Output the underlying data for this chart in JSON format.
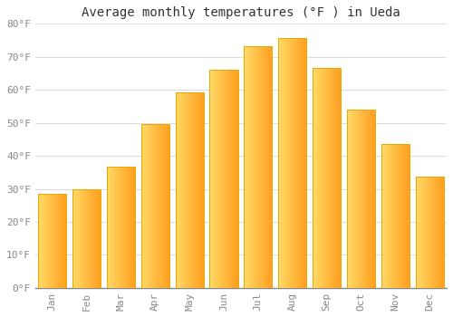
{
  "title": "Average monthly temperatures (°F ) in Ueda",
  "months": [
    "Jan",
    "Feb",
    "Mar",
    "Apr",
    "May",
    "Jun",
    "Jul",
    "Aug",
    "Sep",
    "Oct",
    "Nov",
    "Dec"
  ],
  "values": [
    28.4,
    29.8,
    36.7,
    49.5,
    59.2,
    66.2,
    73.2,
    75.7,
    66.7,
    54.1,
    43.5,
    33.8
  ],
  "bar_color_left": "#FFD966",
  "bar_color_right": "#FFA500",
  "bar_edge_color": "#E8A800",
  "background_color": "#FFFFFF",
  "grid_color": "#DDDDDD",
  "title_fontsize": 10,
  "tick_fontsize": 8,
  "ylim": [
    0,
    80
  ],
  "yticks": [
    0,
    10,
    20,
    30,
    40,
    50,
    60,
    70,
    80
  ],
  "ytick_labels": [
    "0°F",
    "10°F",
    "20°F",
    "30°F",
    "40°F",
    "50°F",
    "60°F",
    "70°F",
    "80°F"
  ]
}
